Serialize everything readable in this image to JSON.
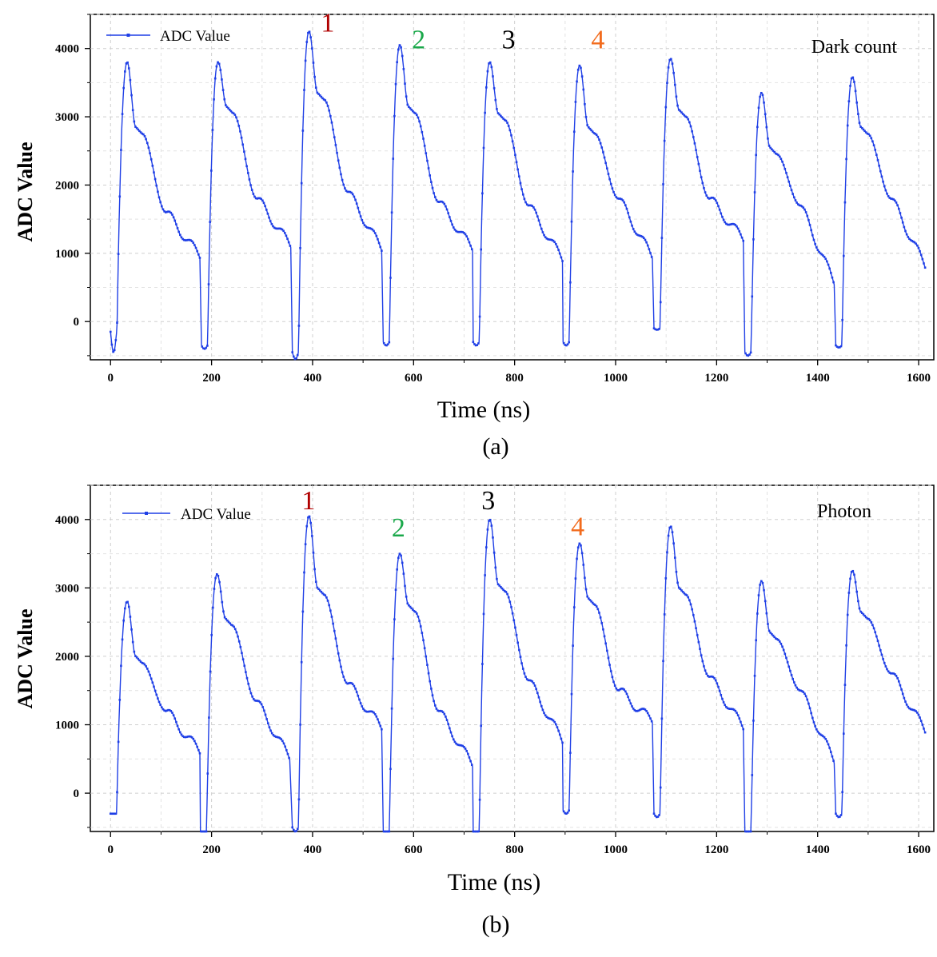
{
  "figure": {
    "panel_a_caption": "(a)",
    "panel_b_caption": "(b)"
  },
  "chart_data": [
    {
      "type": "line",
      "panel": "a",
      "title": "",
      "annotation": "Dark count",
      "xlabel": "Time (ns)",
      "ylabel": "ADC Value",
      "xlim": [
        -40,
        1630
      ],
      "ylim": [
        -560,
        4500
      ],
      "xticks": [
        0,
        200,
        400,
        600,
        800,
        1000,
        1200,
        1400,
        1600
      ],
      "yticks": [
        0,
        1000,
        2000,
        3000,
        4000
      ],
      "grid": true,
      "legend": {
        "label": "ADC Value",
        "position": "top-left"
      },
      "series_color": "#1f3fe6",
      "peak_labels": [
        {
          "text": "1",
          "x": 430,
          "y": 4250,
          "color": "#b00000"
        },
        {
          "text": "2",
          "x": 610,
          "y": 4000,
          "color": "#1aa84a"
        },
        {
          "text": "3",
          "x": 788,
          "y": 4000,
          "color": "#000000"
        },
        {
          "text": "4",
          "x": 965,
          "y": 4000,
          "color": "#f26b1d"
        }
      ],
      "pulses": [
        {
          "start": 0,
          "base": -150,
          "min": -450,
          "peak": 3800,
          "shoulder": 2850,
          "tail": 1600,
          "end": 950
        },
        {
          "start": 180,
          "base": -350,
          "min": -400,
          "peak": 3800,
          "shoulder": 3150,
          "tail": 1800,
          "end": 1100
        },
        {
          "start": 360,
          "base": -450,
          "min": -550,
          "peak": 4250,
          "shoulder": 3350,
          "tail": 1900,
          "end": 1050
        },
        {
          "start": 540,
          "base": -300,
          "min": -350,
          "peak": 4050,
          "shoulder": 3150,
          "tail": 1750,
          "end": 1050
        },
        {
          "start": 718,
          "base": -300,
          "min": -350,
          "peak": 3800,
          "shoulder": 3050,
          "tail": 1700,
          "end": 900
        },
        {
          "start": 896,
          "base": -300,
          "min": -350,
          "peak": 3750,
          "shoulder": 2850,
          "tail": 1800,
          "end": 930
        },
        {
          "start": 1076,
          "base": -100,
          "min": -120,
          "peak": 3850,
          "shoulder": 3100,
          "tail": 1800,
          "end": 1200
        },
        {
          "start": 1256,
          "base": -450,
          "min": -500,
          "peak": 3350,
          "shoulder": 2550,
          "tail": 1700,
          "end": 550
        },
        {
          "start": 1436,
          "base": -350,
          "min": -380,
          "peak": 3580,
          "shoulder": 2850,
          "tail": 1800,
          "end": 800
        }
      ]
    },
    {
      "type": "line",
      "panel": "b",
      "title": "",
      "annotation": "Photon",
      "xlabel": "Time (ns)",
      "ylabel": "ADC Value",
      "xlim": [
        -40,
        1630
      ],
      "ylim": [
        -560,
        4500
      ],
      "xticks": [
        0,
        200,
        400,
        600,
        800,
        1000,
        1200,
        1400,
        1600
      ],
      "yticks": [
        0,
        1000,
        2000,
        3000,
        4000
      ],
      "grid": true,
      "legend": {
        "label": "ADC Value",
        "position": "top-left"
      },
      "series_color": "#1f3fe6",
      "peak_labels": [
        {
          "text": "1",
          "x": 392,
          "y": 4150,
          "color": "#b00000"
        },
        {
          "text": "2",
          "x": 570,
          "y": 3750,
          "color": "#1aa84a"
        },
        {
          "text": "3",
          "x": 748,
          "y": 4150,
          "color": "#000000"
        },
        {
          "text": "4",
          "x": 925,
          "y": 3770,
          "color": "#f26b1d"
        }
      ],
      "pulses": [
        {
          "start": 0,
          "base": -300,
          "min": -300,
          "peak": 2800,
          "shoulder": 2000,
          "tail": 1200,
          "end": 600
        },
        {
          "start": 178,
          "base": -560,
          "min": -560,
          "peak": 3200,
          "shoulder": 2550,
          "tail": 1350,
          "end": 500
        },
        {
          "start": 360,
          "base": -500,
          "min": -560,
          "peak": 4050,
          "shoulder": 3000,
          "tail": 1600,
          "end": 950
        },
        {
          "start": 540,
          "base": -560,
          "min": -560,
          "peak": 3500,
          "shoulder": 2750,
          "tail": 1200,
          "end": 400
        },
        {
          "start": 718,
          "base": -560,
          "min": -560,
          "peak": 4000,
          "shoulder": 3050,
          "tail": 1650,
          "end": 750
        },
        {
          "start": 896,
          "base": -250,
          "min": -300,
          "peak": 3650,
          "shoulder": 2850,
          "tail": 1500,
          "end": 1050
        },
        {
          "start": 1076,
          "base": -300,
          "min": -350,
          "peak": 3900,
          "shoulder": 3000,
          "tail": 1700,
          "end": 950
        },
        {
          "start": 1256,
          "base": -560,
          "min": -560,
          "peak": 3100,
          "shoulder": 2350,
          "tail": 1500,
          "end": 450
        },
        {
          "start": 1436,
          "base": -300,
          "min": -350,
          "peak": 3250,
          "shoulder": 2650,
          "tail": 1750,
          "end": 900
        }
      ]
    }
  ]
}
